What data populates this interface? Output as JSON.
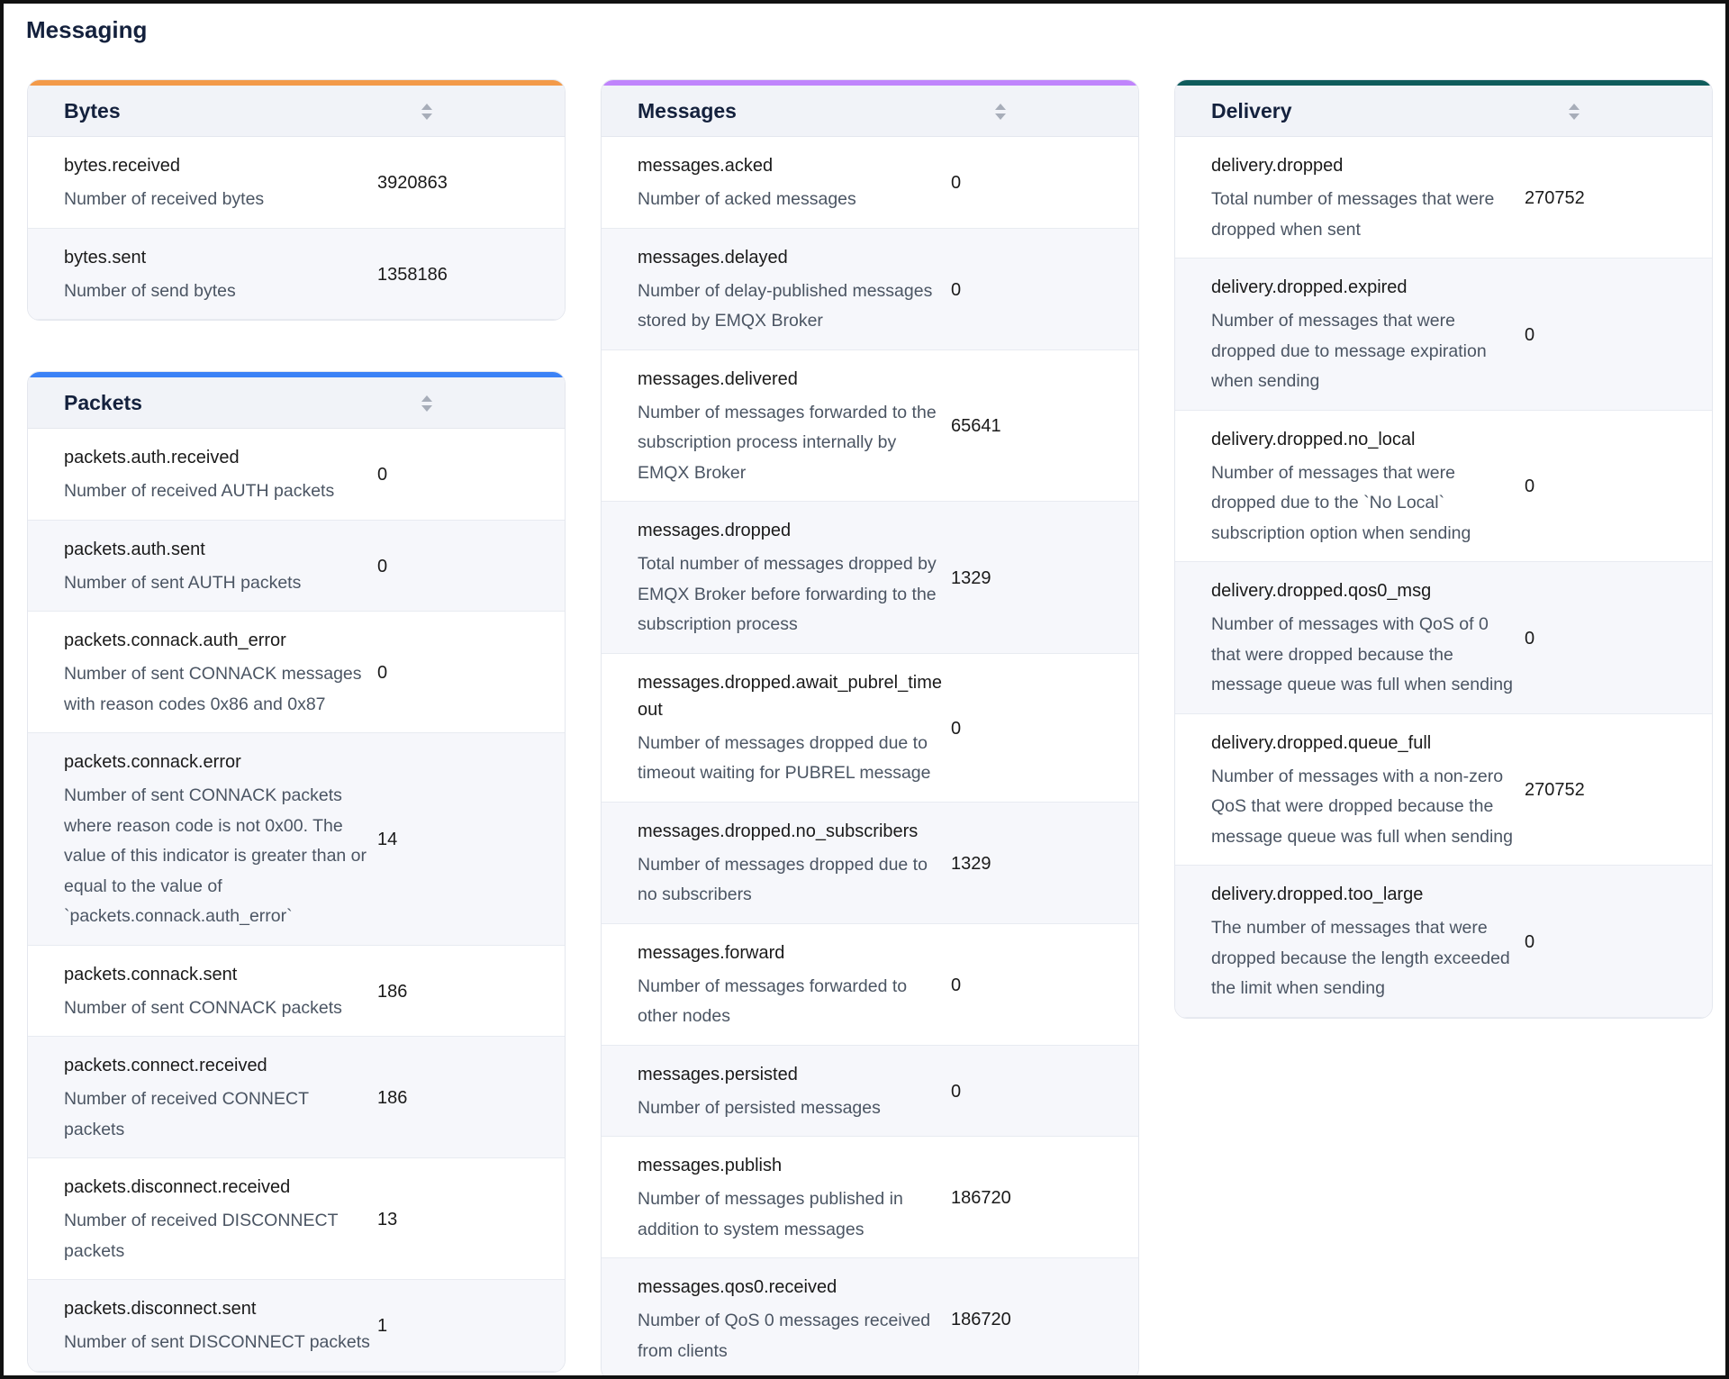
{
  "page_title": "Messaging",
  "colors": {
    "bytes": "#f39a49",
    "packets": "#3b82f6",
    "messages": "#c084fc",
    "delivery": "#0f5c5c"
  },
  "icons": {
    "sort": "sort-icon"
  },
  "bytes": {
    "title": "Bytes",
    "rows": [
      {
        "name": "bytes.received",
        "desc": "Number of received bytes",
        "value": "3920863"
      },
      {
        "name": "bytes.sent",
        "desc": "Number of send bytes",
        "value": "1358186"
      }
    ]
  },
  "packets": {
    "title": "Packets",
    "rows": [
      {
        "name": "packets.auth.received",
        "desc": "Number of received AUTH packets",
        "value": "0"
      },
      {
        "name": "packets.auth.sent",
        "desc": "Number of sent AUTH packets",
        "value": "0"
      },
      {
        "name": "packets.connack.auth_error",
        "desc": "Number of sent CONNACK messages with reason codes 0x86 and 0x87",
        "value": "0"
      },
      {
        "name": "packets.connack.error",
        "desc": "Number of sent CONNACK packets where reason code is not 0x00. The value of this indicator is greater than or equal to the value of `packets.connack.auth_error`",
        "value": "14"
      },
      {
        "name": "packets.connack.sent",
        "desc": "Number of sent CONNACK packets",
        "value": "186"
      },
      {
        "name": "packets.connect.received",
        "desc": "Number of received CONNECT packets",
        "value": "186"
      },
      {
        "name": "packets.disconnect.received",
        "desc": "Number of received DISCONNECT packets",
        "value": "13"
      },
      {
        "name": "packets.disconnect.sent",
        "desc": "Number of sent DISCONNECT packets",
        "value": "1"
      }
    ]
  },
  "messages": {
    "title": "Messages",
    "rows": [
      {
        "name": "messages.acked",
        "desc": "Number of acked messages",
        "value": "0"
      },
      {
        "name": "messages.delayed",
        "desc": "Number of delay-published messages stored by EMQX Broker",
        "value": "0"
      },
      {
        "name": "messages.delivered",
        "desc": "Number of messages forwarded to the subscription process internally by EMQX Broker",
        "value": "65641"
      },
      {
        "name": "messages.dropped",
        "desc": "Total number of messages dropped by EMQX Broker before forwarding to the subscription process",
        "value": "1329"
      },
      {
        "name": "messages.dropped.await_pubrel_timeout",
        "desc": "Number of messages dropped due to timeout waiting for PUBREL message",
        "value": "0"
      },
      {
        "name": "messages.dropped.no_subscribers",
        "desc": "Number of messages dropped due to no subscribers",
        "value": "1329"
      },
      {
        "name": "messages.forward",
        "desc": "Number of messages forwarded to other nodes",
        "value": "0"
      },
      {
        "name": "messages.persisted",
        "desc": "Number of persisted messages",
        "value": "0"
      },
      {
        "name": "messages.publish",
        "desc": "Number of messages published in addition to system messages",
        "value": "186720"
      },
      {
        "name": "messages.qos0.received",
        "desc": "Number of QoS 0 messages received from clients",
        "value": "186720"
      }
    ]
  },
  "delivery": {
    "title": "Delivery",
    "rows": [
      {
        "name": "delivery.dropped",
        "desc": "Total number of messages that were dropped when sent",
        "value": "270752"
      },
      {
        "name": "delivery.dropped.expired",
        "desc": "Number of messages that were dropped due to message expiration when sending",
        "value": "0"
      },
      {
        "name": "delivery.dropped.no_local",
        "desc": "Number of messages that were dropped due to the `No Local` subscription option when sending",
        "value": "0"
      },
      {
        "name": "delivery.dropped.qos0_msg",
        "desc": "Number of messages with QoS of 0 that were dropped because the message queue was full when sending",
        "value": "0"
      },
      {
        "name": "delivery.dropped.queue_full",
        "desc": "Number of messages with a non-zero QoS that were dropped because the message queue was full when sending",
        "value": "270752"
      },
      {
        "name": "delivery.dropped.too_large",
        "desc": "The number of messages that were dropped because the length exceeded the limit when sending",
        "value": "0"
      }
    ]
  }
}
